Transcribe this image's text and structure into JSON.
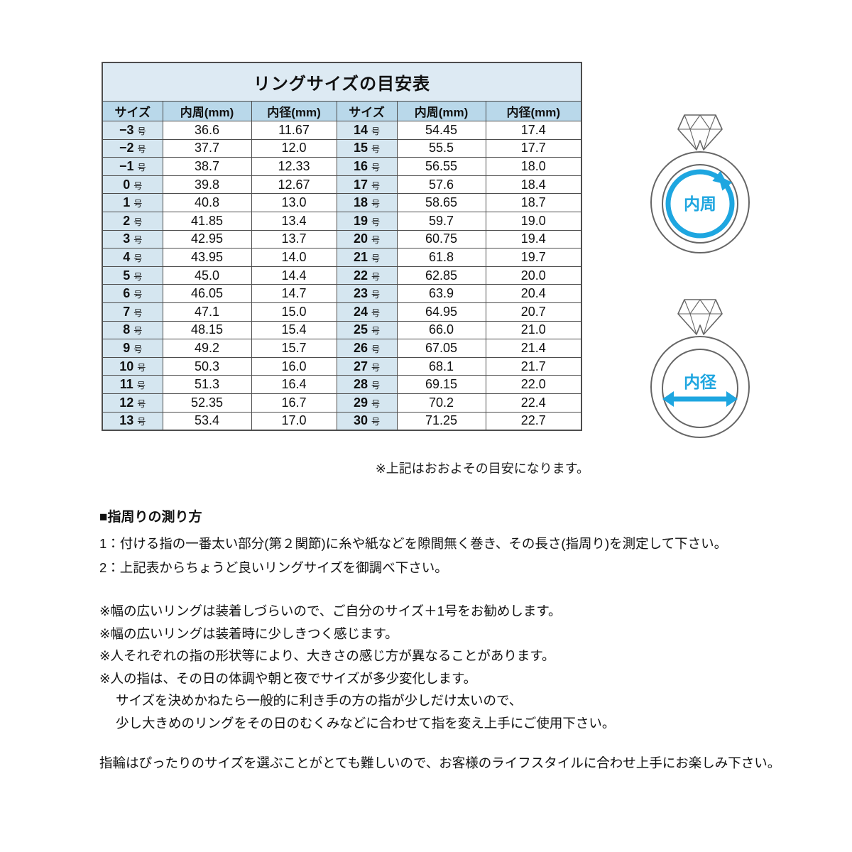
{
  "colors": {
    "accent_blue": "#1ea6e0",
    "table_title_bg": "#ddeaf3",
    "table_header_bg": "#b9d8ea",
    "table_size_cell_bg": "#d5e6f0",
    "table_border": "#4d4d4d",
    "ring_outline_gray": "#666666"
  },
  "table": {
    "title": "リングサイズの目安表",
    "headers": [
      "サイズ",
      "内周(mm)",
      "内径(mm)",
      "サイズ",
      "内周(mm)",
      "内径(mm)"
    ],
    "size_unit": "号",
    "rows": [
      {
        "sl": "−3",
        "cl": "36.6",
        "dl": "11.67",
        "sr": "14",
        "cr": "54.45",
        "dr": "17.4"
      },
      {
        "sl": "−2",
        "cl": "37.7",
        "dl": "12.0",
        "sr": "15",
        "cr": "55.5",
        "dr": "17.7"
      },
      {
        "sl": "−1",
        "cl": "38.7",
        "dl": "12.33",
        "sr": "16",
        "cr": "56.55",
        "dr": "18.0"
      },
      {
        "sl": "0",
        "cl": "39.8",
        "dl": "12.67",
        "sr": "17",
        "cr": "57.6",
        "dr": "18.4"
      },
      {
        "sl": "1",
        "cl": "40.8",
        "dl": "13.0",
        "sr": "18",
        "cr": "58.65",
        "dr": "18.7"
      },
      {
        "sl": "2",
        "cl": "41.85",
        "dl": "13.4",
        "sr": "19",
        "cr": "59.7",
        "dr": "19.0"
      },
      {
        "sl": "3",
        "cl": "42.95",
        "dl": "13.7",
        "sr": "20",
        "cr": "60.75",
        "dr": "19.4"
      },
      {
        "sl": "4",
        "cl": "43.95",
        "dl": "14.0",
        "sr": "21",
        "cr": "61.8",
        "dr": "19.7"
      },
      {
        "sl": "5",
        "cl": "45.0",
        "dl": "14.4",
        "sr": "22",
        "cr": "62.85",
        "dr": "20.0"
      },
      {
        "sl": "6",
        "cl": "46.05",
        "dl": "14.7",
        "sr": "23",
        "cr": "63.9",
        "dr": "20.4"
      },
      {
        "sl": "7",
        "cl": "47.1",
        "dl": "15.0",
        "sr": "24",
        "cr": "64.95",
        "dr": "20.7"
      },
      {
        "sl": "8",
        "cl": "48.15",
        "dl": "15.4",
        "sr": "25",
        "cr": "66.0",
        "dr": "21.0"
      },
      {
        "sl": "9",
        "cl": "49.2",
        "dl": "15.7",
        "sr": "26",
        "cr": "67.05",
        "dr": "21.4"
      },
      {
        "sl": "10",
        "cl": "50.3",
        "dl": "16.0",
        "sr": "27",
        "cr": "68.1",
        "dr": "21.7"
      },
      {
        "sl": "11",
        "cl": "51.3",
        "dl": "16.4",
        "sr": "28",
        "cr": "69.15",
        "dr": "22.0"
      },
      {
        "sl": "12",
        "cl": "52.35",
        "dl": "16.7",
        "sr": "29",
        "cr": "70.2",
        "dr": "22.4"
      },
      {
        "sl": "13",
        "cl": "53.4",
        "dl": "17.0",
        "sr": "30",
        "cr": "71.25",
        "dr": "22.7"
      }
    ],
    "approx_note": "※上記はおおよその目安になります。"
  },
  "rings": {
    "circumference_label": "内周",
    "diameter_label": "内径"
  },
  "measuring": {
    "heading": "■指周りの測り方",
    "steps": [
      "1：付ける指の一番太い部分(第２関節)に糸や紙などを隙間無く巻き、その長さ(指周り)を測定して下さい。",
      "2：上記表からちょうど良いリングサイズを御調べ下さい。"
    ],
    "notes": [
      "※幅の広いリングは装着しづらいので、ご自分のサイズ＋1号をお勧めします。",
      "※幅の広いリングは装着時に少しきつく感じます。",
      "※人それぞれの指の形状等により、大きさの感じ方が異なることがあります。",
      "※人の指は、その日の体調や朝と夜でサイズが多少変化します。"
    ],
    "notes_sub": [
      "サイズを決めかねたら一般的に利き手の方の指が少しだけ太いので、",
      "少し大きめのリングをその日のむくみなどに合わせて指を変え上手にご使用下さい。"
    ],
    "footer": "指輪はぴったりのサイズを選ぶことがとても難しいので、お客様のライフスタイルに合わせ上手にお楽しみ下さい。"
  }
}
